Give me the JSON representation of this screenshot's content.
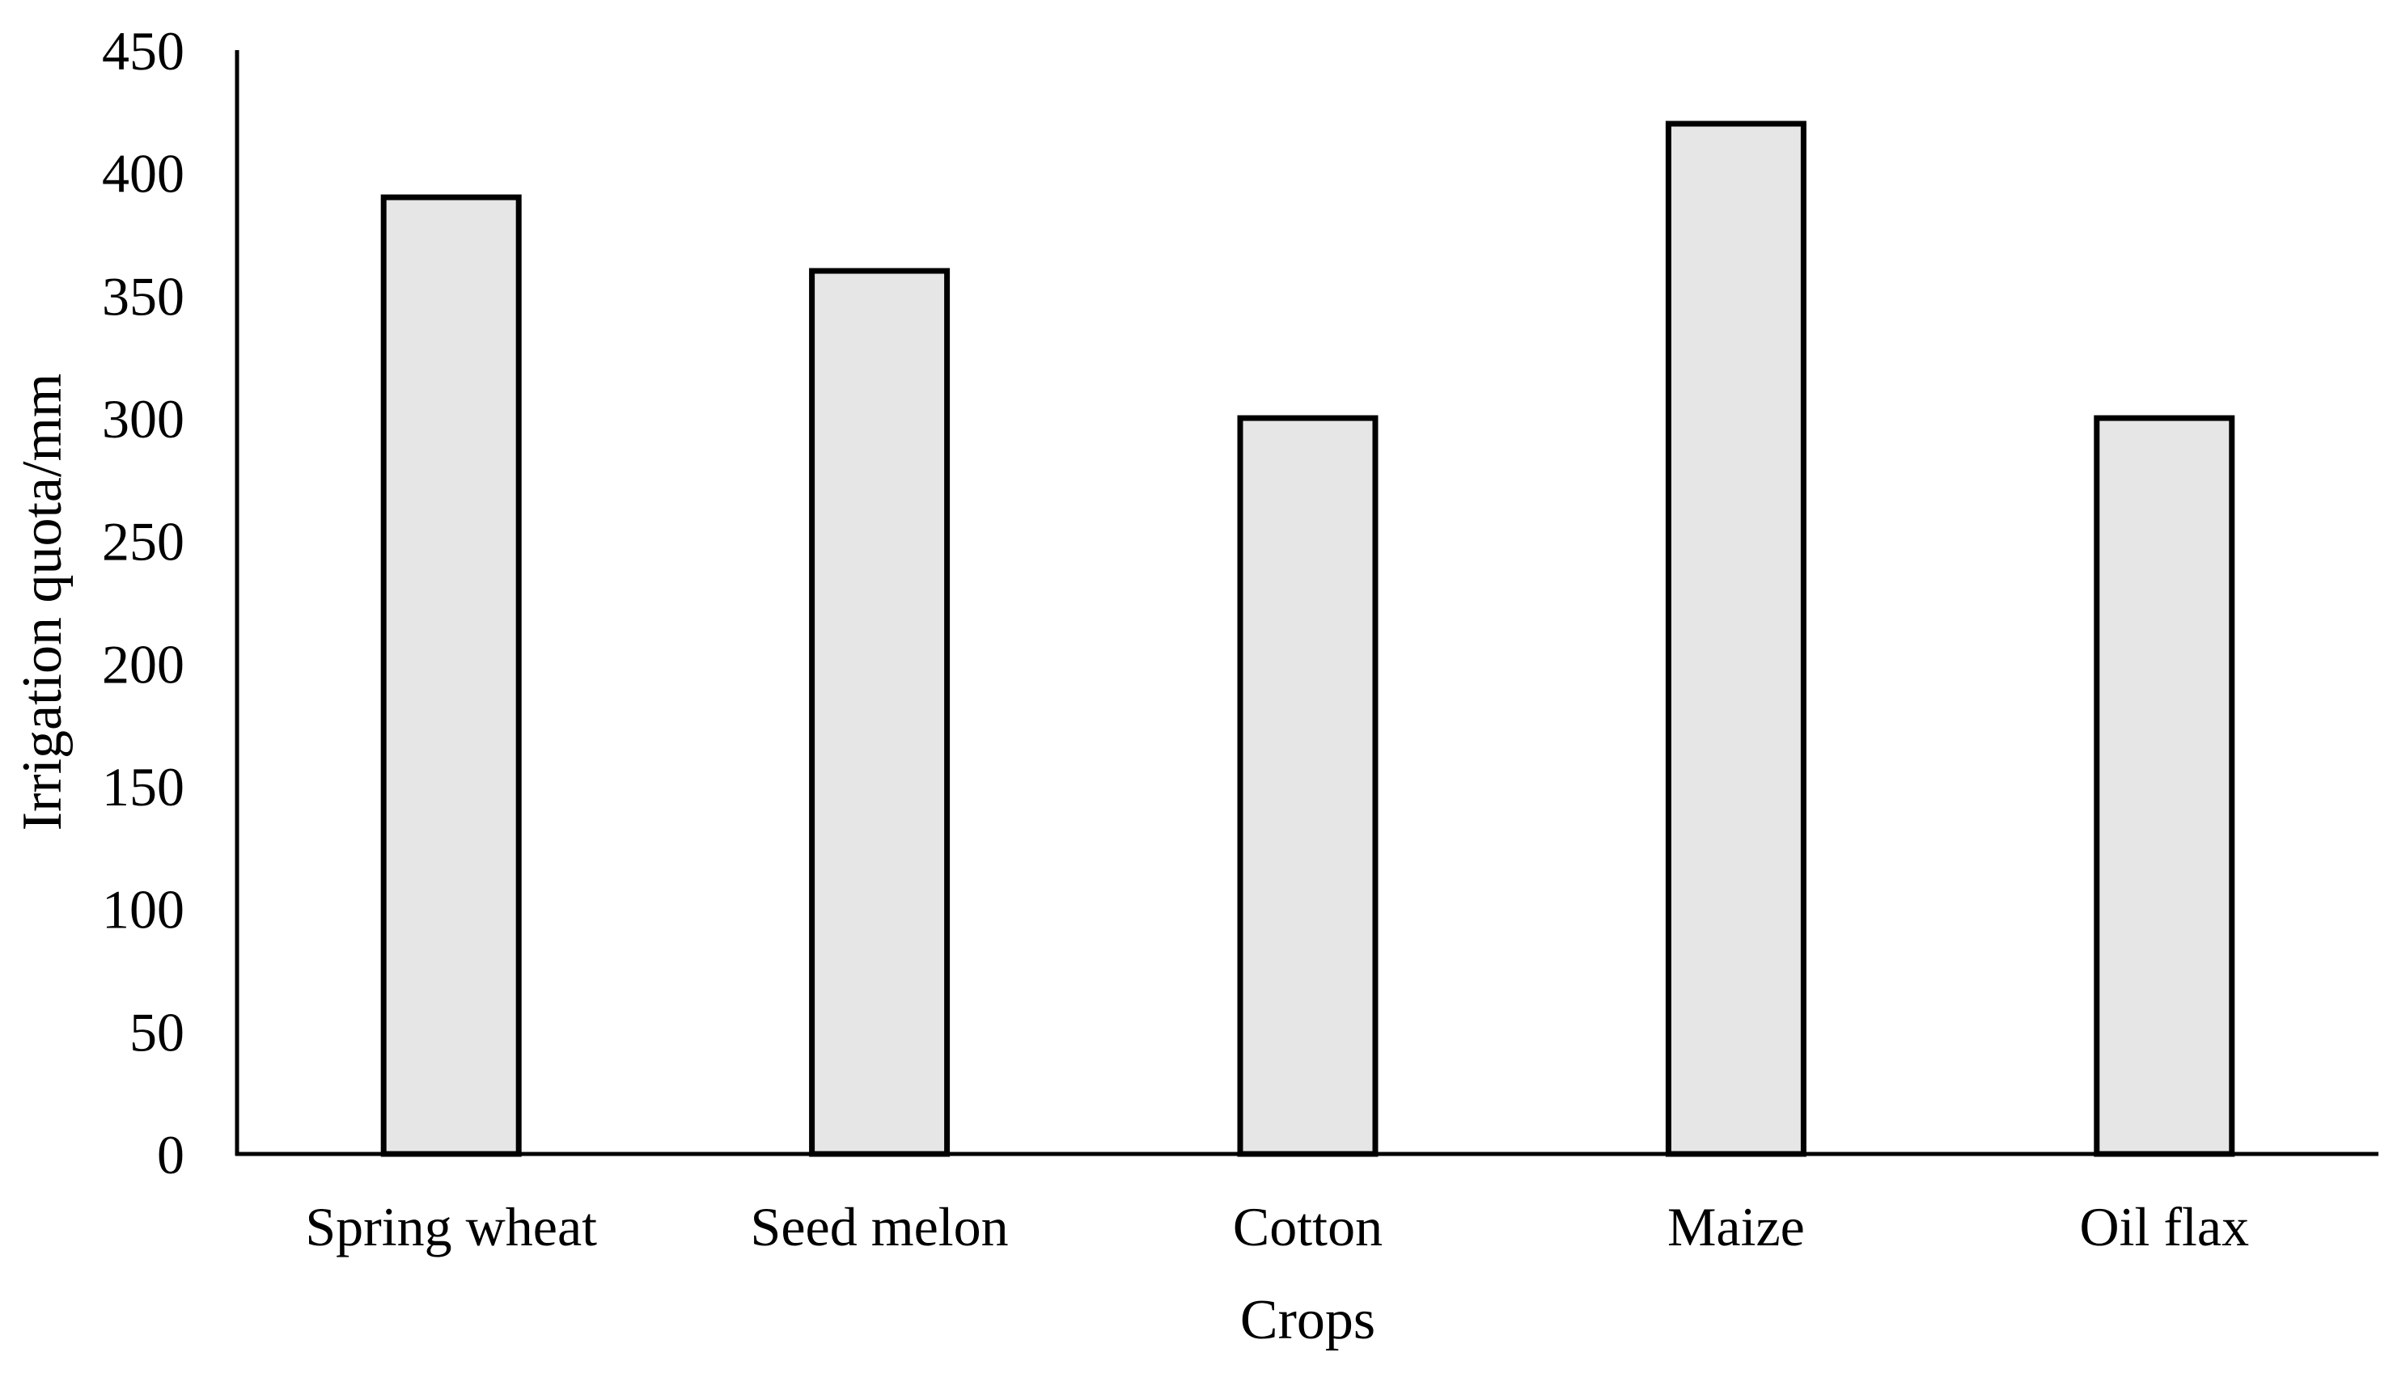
{
  "chart_data": {
    "type": "bar",
    "title": "",
    "xlabel": "Crops",
    "ylabel": "Irrigation quota/mm",
    "categories": [
      "Spring wheat",
      "Seed melon",
      "Cotton",
      "Maize",
      "Oil flax"
    ],
    "values": [
      390,
      360,
      300,
      420,
      300
    ],
    "ylim": [
      0,
      450
    ],
    "yticks": [
      0,
      50,
      100,
      150,
      200,
      250,
      300,
      350,
      400,
      450
    ],
    "grid": false,
    "legend": "none",
    "colors": {
      "bar_fill": "#e6e6e6",
      "bar_stroke": "#000000",
      "axis": "#000000"
    }
  }
}
